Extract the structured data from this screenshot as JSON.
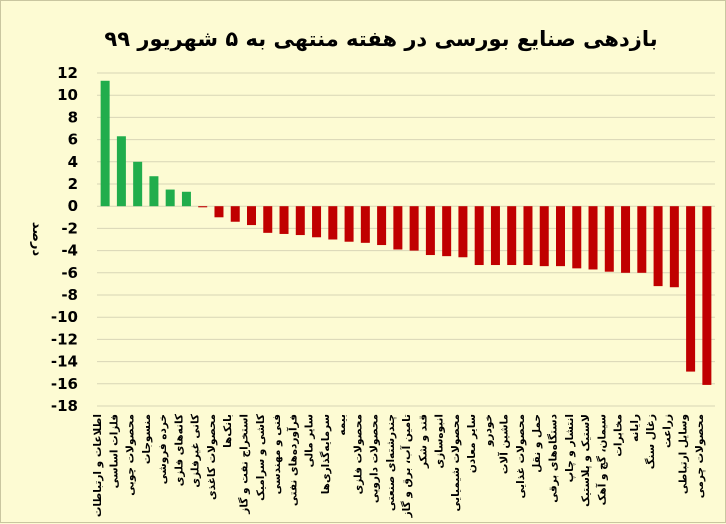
{
  "chart_data": {
    "type": "bar",
    "title": "بازدهی صنایع بورسی در هفته منتهی به ۵ شهریور ۹۹",
    "xlabel": "",
    "ylabel": "درصد",
    "ylim": [
      -18,
      12
    ],
    "y_ticks": [
      12,
      10,
      8,
      6,
      4,
      2,
      0,
      -2,
      -4,
      -6,
      -8,
      -10,
      -12,
      -14,
      -16,
      -18
    ],
    "grid": true,
    "legend": "none",
    "categories": [
      "اطلاعات و ارتباطات",
      "فلزات اساسی",
      "محصولات چوبی",
      "منسوجات",
      "خرده فروشی",
      "کانه‌های فلزی",
      "کانی غیرفلزی",
      "محصولات کاغذی",
      "بانک‌ها",
      "استخراج نفت و گاز",
      "کاشی و سرامیک",
      "فنی و مهندسی",
      "فرآورده‌های نفتی",
      "سایر مالی",
      "سرمایه‌گذاری‌ها",
      "بیمه",
      "محصولات فلزی",
      "محصولات دارویی",
      "چندرشته‌ای صنعتی",
      "تامین آب، برق و گاز",
      "قند و شکر",
      "انبوه‌سازی",
      "محصولات شیمیایی",
      "سایر معادن",
      "خودرو",
      "ماشین آلات",
      "محصولات غذایی",
      "حمل و نقل",
      "دستگاه‌های برقی",
      "انتشار و چاپ",
      "لاستیک و پلاستیک",
      "سیمان، گچ و آهک",
      "مخابرات",
      "رایانه",
      "زغال سنگ",
      "زراعت",
      "وسایل ارتباطی",
      "محصولات چرمی"
    ],
    "values": [
      11.3,
      6.3,
      4.0,
      2.7,
      1.5,
      1.3,
      -0.1,
      -1.0,
      -1.4,
      -1.7,
      -2.4,
      -2.5,
      -2.6,
      -2.8,
      -3.0,
      -3.2,
      -3.3,
      -3.5,
      -3.9,
      -4.0,
      -4.4,
      -4.5,
      -4.6,
      -5.3,
      -5.3,
      -5.3,
      -5.3,
      -5.4,
      -5.4,
      -5.6,
      -5.7,
      -5.9,
      -6.0,
      -6.0,
      -7.2,
      -7.3,
      -14.9,
      -16.1
    ],
    "colors": {
      "positive": "#21ad4c",
      "negative": "#c00000"
    }
  }
}
